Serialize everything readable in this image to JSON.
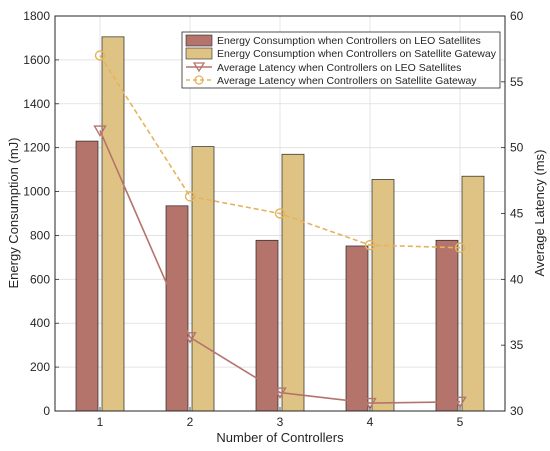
{
  "chart_data": {
    "type": "bar+line",
    "categories": [
      "1",
      "2",
      "3",
      "4",
      "5"
    ],
    "xlabel": "Number of Controllers",
    "ylabel_left": "Energy Consumption (mJ)",
    "ylabel_right": "Average Latency (ms)",
    "ylim_left": [
      0,
      1800
    ],
    "ylim_right": [
      30,
      60
    ],
    "yticks_left": [
      0,
      200,
      400,
      600,
      800,
      1000,
      1200,
      1400,
      1600,
      1800
    ],
    "yticks_right": [
      30,
      35,
      40,
      45,
      50,
      55,
      60
    ],
    "grid": true,
    "legend_position": "top-right",
    "bar_series": [
      {
        "name": "Energy Consumption when Controllers on LEO Satellites",
        "color": "#b5746b",
        "values": [
          1230,
          935,
          778,
          752,
          778
        ]
      },
      {
        "name": "Energy Consumption when Controllers on Satellite Gateway",
        "color": "#dfc384",
        "values": [
          1705,
          1205,
          1170,
          1055,
          1070
        ]
      }
    ],
    "line_series": [
      {
        "name": "Average Latency when Controllers on LEO Satellites",
        "color": "#b5746b",
        "marker": "triangle-down",
        "dash": "solid",
        "values": [
          51.3,
          35.6,
          31.4,
          30.6,
          30.7
        ]
      },
      {
        "name": "Average Latency when Controllers on Satellite Gateway",
        "color": "#e4b45c",
        "marker": "circle",
        "dash": "dashed",
        "values": [
          57.0,
          46.3,
          45.0,
          42.6,
          42.4
        ]
      }
    ]
  }
}
